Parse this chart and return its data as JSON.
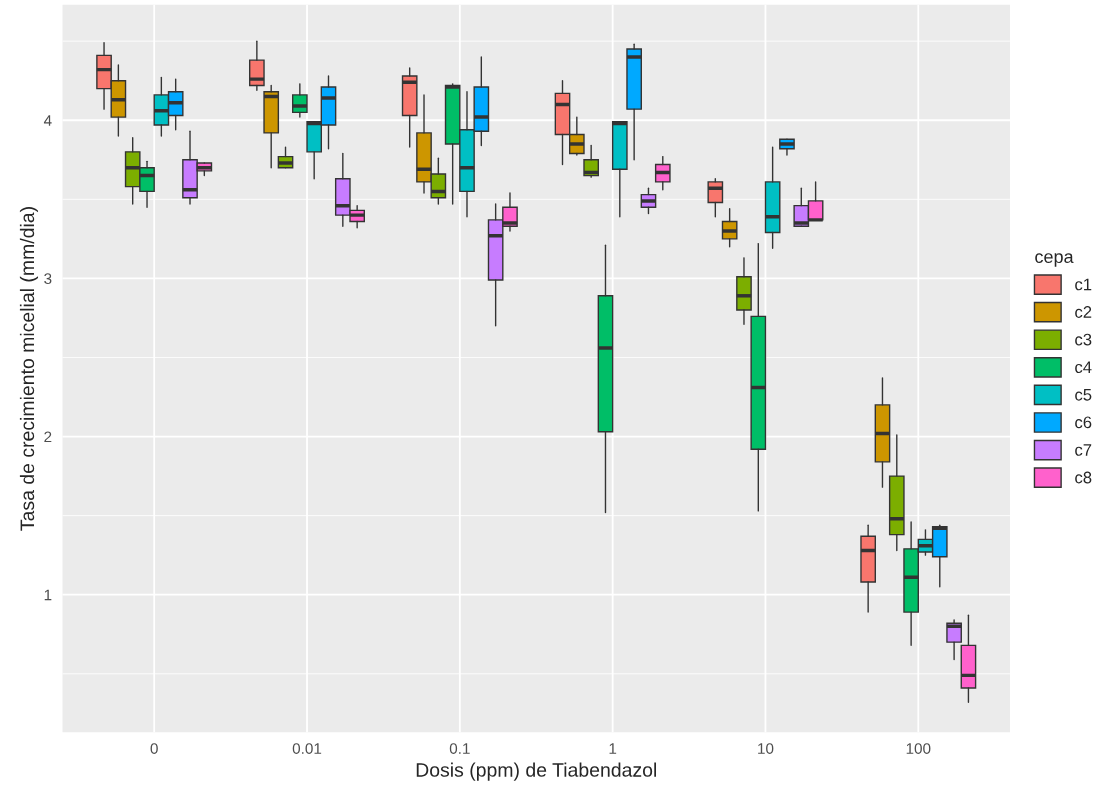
{
  "chart_data": {
    "type": "box",
    "xlabel": "Dosis (ppm) de Tiabendazol",
    "ylabel": "Tasa de crecimiento micelial (mm/dia)",
    "legend_title": "cepa",
    "categories": [
      "0",
      "0.01",
      "0.1",
      "1",
      "10",
      "100"
    ],
    "ylim": [
      0.13,
      4.73
    ],
    "yticks": [
      1,
      2,
      3,
      4
    ],
    "grid": true,
    "legend": "right",
    "series": [
      {
        "name": "c1",
        "color": "#f8766d",
        "boxes": [
          {
            "low": 4.07,
            "q1": 4.2,
            "median": 4.32,
            "q3": 4.41,
            "high": 4.49
          },
          {
            "low": 4.19,
            "q1": 4.22,
            "median": 4.26,
            "q3": 4.38,
            "high": 4.5
          },
          {
            "low": 3.83,
            "q1": 4.03,
            "median": 4.24,
            "q3": 4.28,
            "high": 4.33
          },
          {
            "low": 3.72,
            "q1": 3.91,
            "median": 4.1,
            "q3": 4.17,
            "high": 4.25
          },
          {
            "low": 3.39,
            "q1": 3.48,
            "median": 3.57,
            "q3": 3.61,
            "high": 3.63
          },
          {
            "low": 0.89,
            "q1": 1.08,
            "median": 1.28,
            "q3": 1.37,
            "high": 1.44
          }
        ]
      },
      {
        "name": "c2",
        "color": "#cd9600",
        "boxes": [
          {
            "low": 3.9,
            "q1": 4.02,
            "median": 4.13,
            "q3": 4.25,
            "high": 4.35
          },
          {
            "low": 3.7,
            "q1": 3.92,
            "median": 4.15,
            "q3": 4.18,
            "high": 4.22
          },
          {
            "low": 3.54,
            "q1": 3.61,
            "median": 3.69,
            "q3": 3.92,
            "high": 4.16
          },
          {
            "low": 3.78,
            "q1": 3.79,
            "median": 3.85,
            "q3": 3.91,
            "high": 4.02
          },
          {
            "low": 3.2,
            "q1": 3.25,
            "median": 3.3,
            "q3": 3.36,
            "high": 3.44
          },
          {
            "low": 1.68,
            "q1": 1.84,
            "median": 2.02,
            "q3": 2.2,
            "high": 2.37
          }
        ]
      },
      {
        "name": "c3",
        "color": "#7cae00",
        "boxes": [
          {
            "low": 3.47,
            "q1": 3.58,
            "median": 3.7,
            "q3": 3.8,
            "high": 3.89
          },
          {
            "low": 3.7,
            "q1": 3.7,
            "median": 3.73,
            "q3": 3.77,
            "high": 3.83
          },
          {
            "low": 3.47,
            "q1": 3.51,
            "median": 3.55,
            "q3": 3.66,
            "high": 3.76
          },
          {
            "low": 3.64,
            "q1": 3.65,
            "median": 3.67,
            "q3": 3.75,
            "high": 3.84
          },
          {
            "low": 2.71,
            "q1": 2.8,
            "median": 2.89,
            "q3": 3.01,
            "high": 3.13
          },
          {
            "low": 1.28,
            "q1": 1.38,
            "median": 1.48,
            "q3": 1.75,
            "high": 2.01
          }
        ]
      },
      {
        "name": "c4",
        "color": "#00be67",
        "boxes": [
          {
            "low": 3.45,
            "q1": 3.55,
            "median": 3.65,
            "q3": 3.7,
            "high": 3.74
          },
          {
            "low": 4.02,
            "q1": 4.05,
            "median": 4.09,
            "q3": 4.16,
            "high": 4.23
          },
          {
            "low": 3.47,
            "q1": 3.85,
            "median": 4.21,
            "q3": 4.22,
            "high": 4.23
          },
          {
            "low": 1.52,
            "q1": 2.03,
            "median": 2.56,
            "q3": 2.89,
            "high": 3.21
          },
          {
            "low": 1.53,
            "q1": 1.92,
            "median": 2.31,
            "q3": 2.76,
            "high": 3.22
          },
          {
            "low": 0.68,
            "q1": 0.89,
            "median": 1.11,
            "q3": 1.29,
            "high": 1.46
          }
        ]
      },
      {
        "name": "c5",
        "color": "#00bfc4",
        "boxes": [
          {
            "low": 3.9,
            "q1": 3.97,
            "median": 4.06,
            "q3": 4.16,
            "high": 4.27
          },
          {
            "low": 3.63,
            "q1": 3.8,
            "median": 3.98,
            "q3": 3.99,
            "high": 3.99
          },
          {
            "low": 3.39,
            "q1": 3.55,
            "median": 3.7,
            "q3": 3.94,
            "high": 4.18
          },
          {
            "low": 3.39,
            "q1": 3.69,
            "median": 3.98,
            "q3": 3.99,
            "high": 3.99
          },
          {
            "low": 3.19,
            "q1": 3.29,
            "median": 3.39,
            "q3": 3.61,
            "high": 3.83
          },
          {
            "low": 1.25,
            "q1": 1.27,
            "median": 1.31,
            "q3": 1.35,
            "high": 1.41
          }
        ]
      },
      {
        "name": "c6",
        "color": "#00a9ff",
        "boxes": [
          {
            "low": 3.94,
            "q1": 4.03,
            "median": 4.11,
            "q3": 4.18,
            "high": 4.26
          },
          {
            "low": 3.82,
            "q1": 3.97,
            "median": 4.14,
            "q3": 4.21,
            "high": 4.28
          },
          {
            "low": 3.84,
            "q1": 3.93,
            "median": 4.02,
            "q3": 4.21,
            "high": 4.4
          },
          {
            "low": 3.75,
            "q1": 4.07,
            "median": 4.4,
            "q3": 4.45,
            "high": 4.48
          },
          {
            "low": 3.78,
            "q1": 3.82,
            "median": 3.85,
            "q3": 3.88,
            "high": 3.88
          },
          {
            "low": 1.05,
            "q1": 1.24,
            "median": 1.42,
            "q3": 1.43,
            "high": 1.44
          }
        ]
      },
      {
        "name": "c7",
        "color": "#c77cff",
        "boxes": [
          {
            "low": 3.47,
            "q1": 3.51,
            "median": 3.56,
            "q3": 3.75,
            "high": 3.93
          },
          {
            "low": 3.33,
            "q1": 3.4,
            "median": 3.46,
            "q3": 3.63,
            "high": 3.79
          },
          {
            "low": 2.7,
            "q1": 2.99,
            "median": 3.27,
            "q3": 3.37,
            "high": 3.47
          },
          {
            "low": 3.41,
            "q1": 3.45,
            "median": 3.49,
            "q3": 3.53,
            "high": 3.57
          },
          {
            "low": 3.33,
            "q1": 3.33,
            "median": 3.35,
            "q3": 3.46,
            "high": 3.57
          },
          {
            "low": 0.59,
            "q1": 0.7,
            "median": 0.8,
            "q3": 0.82,
            "high": 0.84
          }
        ]
      },
      {
        "name": "c8",
        "color": "#ff61cc",
        "boxes": [
          {
            "low": 3.65,
            "q1": 3.68,
            "median": 3.7,
            "q3": 3.73,
            "high": 3.73
          },
          {
            "low": 3.32,
            "q1": 3.36,
            "median": 3.4,
            "q3": 3.43,
            "high": 3.46
          },
          {
            "low": 3.3,
            "q1": 3.33,
            "median": 3.35,
            "q3": 3.45,
            "high": 3.54
          },
          {
            "low": 3.56,
            "q1": 3.61,
            "median": 3.67,
            "q3": 3.72,
            "high": 3.77
          },
          {
            "low": 3.37,
            "q1": 3.37,
            "median": 3.37,
            "q3": 3.49,
            "high": 3.61
          },
          {
            "low": 0.32,
            "q1": 0.41,
            "median": 0.49,
            "q3": 0.68,
            "high": 0.87
          }
        ]
      }
    ]
  }
}
